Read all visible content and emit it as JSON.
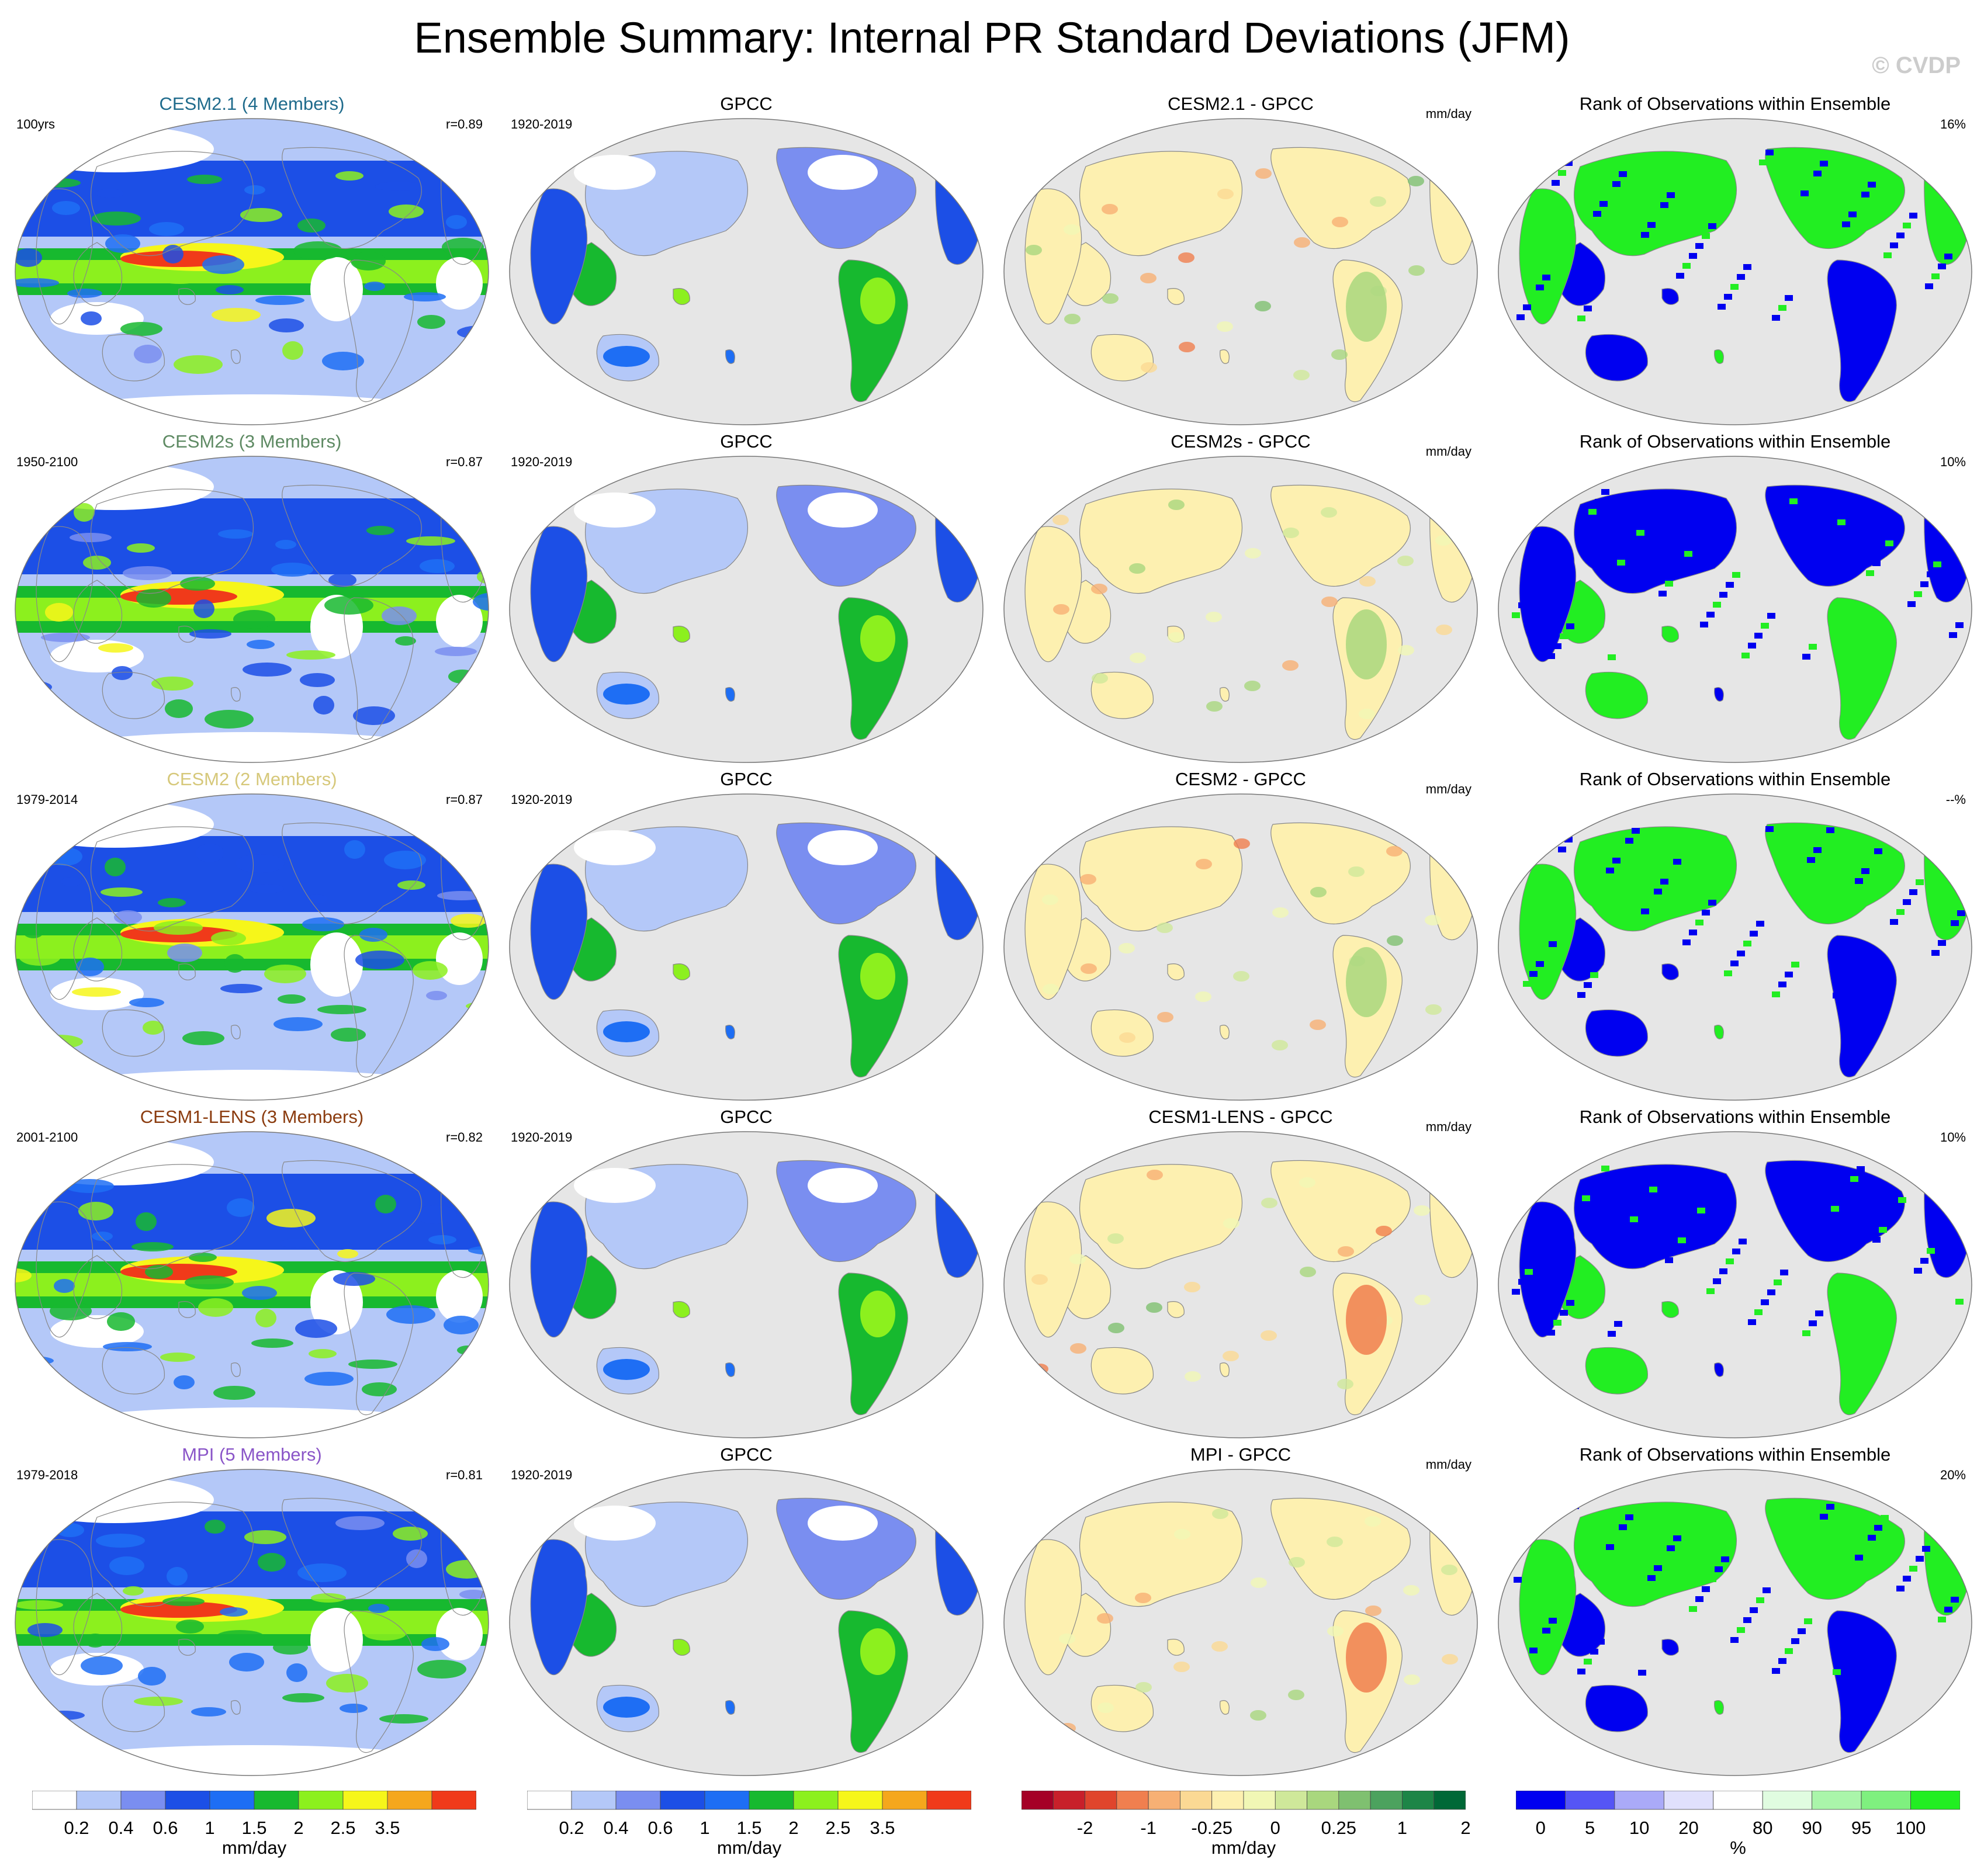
{
  "title": "Ensemble Summary: Internal PR Standard Deviations (JFM)",
  "watermark": "© CVDP",
  "colors": {
    "ocean_masked": "#e6e6e6",
    "coastline": "#888888",
    "model_scale": [
      "#ffffff",
      "#b4c8f8",
      "#7a8ef0",
      "#1c4fe6",
      "#1e6ef4",
      "#17b92f",
      "#8cf01e",
      "#f6f61a",
      "#f5a71c",
      "#f03a1a"
    ],
    "diff_scale": [
      "#a50026",
      "#c8202a",
      "#e0452c",
      "#f07f4f",
      "#f7b074",
      "#fbd994",
      "#fdf0b0",
      "#f1f7b5",
      "#cfe89a",
      "#a9d77e",
      "#7fc070",
      "#4ca25e",
      "#1d8547",
      "#006837"
    ],
    "rank_scale": [
      "#0000f0",
      "#5555f5",
      "#aaaaf8",
      "#e0e0fc",
      "#ffffff",
      "#e0fce0",
      "#aaf5aa",
      "#7ff07f",
      "#22ee22"
    ]
  },
  "rows": [
    {
      "model": "CESM2.1 (4 Members)",
      "model_color": "#1f6b8c",
      "years": "100yrs",
      "r": "r=0.89",
      "obs": "GPCC",
      "obs_years": "1920-2019",
      "diff": "CESM2.1 - GPCC",
      "diff_unit": "mm/day",
      "rank_title": "Rank of Observations within Ensemble",
      "rank_pct": "16%"
    },
    {
      "model": "CESM2s (3 Members)",
      "model_color": "#5e8a63",
      "years": "1950-2100",
      "r": "r=0.87",
      "obs": "GPCC",
      "obs_years": "1920-2019",
      "diff": "CESM2s - GPCC",
      "diff_unit": "mm/day",
      "rank_title": "Rank of Observations within Ensemble",
      "rank_pct": "10%"
    },
    {
      "model": "CESM2 (2 Members)",
      "model_color": "#d6c87a",
      "years": "1979-2014",
      "r": "r=0.87",
      "obs": "GPCC",
      "obs_years": "1920-2019",
      "diff": "CESM2 - GPCC",
      "diff_unit": "mm/day",
      "rank_title": "Rank of Observations within Ensemble",
      "rank_pct": "--%"
    },
    {
      "model": "CESM1-LENS (3 Members)",
      "model_color": "#8b3c0f",
      "years": "2001-2100",
      "r": "r=0.82",
      "obs": "GPCC",
      "obs_years": "1920-2019",
      "diff": "CESM1-LENS - GPCC",
      "diff_unit": "mm/day",
      "rank_title": "Rank of Observations within Ensemble",
      "rank_pct": "10%"
    },
    {
      "model": "MPI (5 Members)",
      "model_color": "#8a55c8",
      "years": "1979-2018",
      "r": "r=0.81",
      "obs": "GPCC",
      "obs_years": "1920-2019",
      "diff": "MPI - GPCC",
      "diff_unit": "mm/day",
      "rank_title": "Rank of Observations within Ensemble",
      "rank_pct": "20%"
    }
  ],
  "colorbars": [
    {
      "name": "model",
      "ticks": [
        "0.2",
        "0.4",
        "0.6",
        "1",
        "1.5",
        "2",
        "2.5",
        "3.5"
      ],
      "unit": "mm/day"
    },
    {
      "name": "obs",
      "ticks": [
        "0.2",
        "0.4",
        "0.6",
        "1",
        "1.5",
        "2",
        "2.5",
        "3.5"
      ],
      "unit": "mm/day"
    },
    {
      "name": "diff",
      "ticks": [
        "-2",
        "-1",
        "-0.25",
        "0",
        "0.25",
        "1",
        "2"
      ],
      "unit": "mm/day"
    },
    {
      "name": "rank",
      "ticks": [
        "0",
        "5",
        "10",
        "20",
        "80",
        "90",
        "95",
        "100"
      ],
      "unit": "%"
    }
  ],
  "chart_data": {
    "type": "heatmap",
    "title": "Ensemble Summary: Internal PR Standard Deviations (JFM)",
    "projection": "global map (Robinson-like ellipse), Pacific-centered",
    "panels_per_row": [
      "model ensemble-mean std dev",
      "GPCC observed std dev",
      "model minus GPCC difference",
      "rank of observations within ensemble"
    ],
    "pattern_correlations": [
      {
        "model": "CESM2.1 (4 Members)",
        "r": 0.89
      },
      {
        "model": "CESM2s (3 Members)",
        "r": 0.87
      },
      {
        "model": "CESM2 (2 Members)",
        "r": 0.87
      },
      {
        "model": "CESM1-LENS (3 Members)",
        "r": 0.82
      },
      {
        "model": "MPI (5 Members)",
        "r": 0.81
      }
    ],
    "rank_percentages": [
      {
        "model": "CESM2.1 (4 Members)",
        "value": "16%"
      },
      {
        "model": "CESM2s (3 Members)",
        "value": "10%"
      },
      {
        "model": "CESM2 (2 Members)",
        "value": "--%"
      },
      {
        "model": "CESM1-LENS (3 Members)",
        "value": "10%"
      },
      {
        "model": "MPI (5 Members)",
        "value": "20%"
      }
    ],
    "std_dev_levels_mm_per_day": [
      0.2,
      0.4,
      0.6,
      1,
      1.5,
      2,
      2.5,
      3.5
    ],
    "difference_levels_mm_per_day": [
      -2,
      -1,
      -0.25,
      0,
      0.25,
      1,
      2
    ],
    "rank_levels_percent": [
      0,
      5,
      10,
      20,
      80,
      90,
      95,
      100
    ]
  }
}
